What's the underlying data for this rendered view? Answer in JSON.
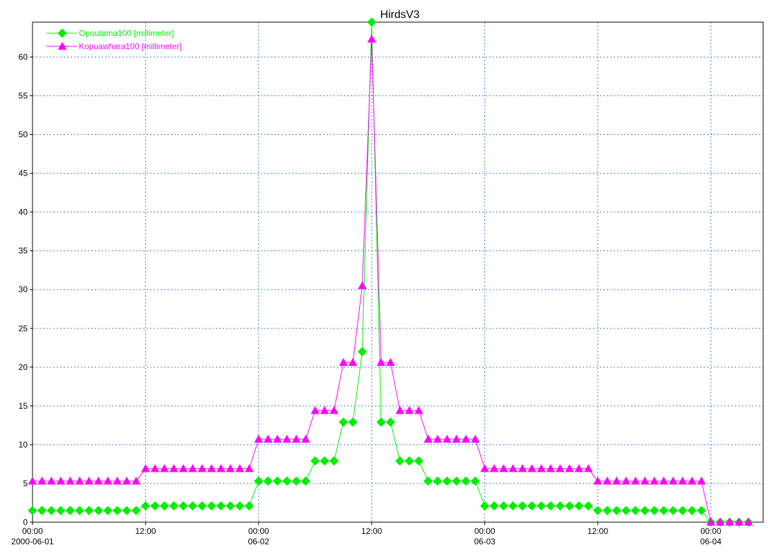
{
  "chart_data": {
    "type": "line",
    "title": "HirdsV3",
    "xlabel": "",
    "ylabel": "",
    "x_start": "2000-06-01 00:00",
    "x_step_hours": 1,
    "x_ticks": [
      {
        "time": "00:00",
        "date": "2000-06-01"
      },
      {
        "time": "12:00",
        "date": ""
      },
      {
        "time": "00:00",
        "date": "06-02"
      },
      {
        "time": "12:00",
        "date": ""
      },
      {
        "time": "00:00",
        "date": "06-03"
      },
      {
        "time": "12:00",
        "date": ""
      },
      {
        "time": "00:00",
        "date": "06-04"
      }
    ],
    "y_ticks": [
      0,
      5,
      10,
      15,
      20,
      25,
      30,
      35,
      40,
      45,
      50,
      55,
      60
    ],
    "ylim": [
      0,
      64.5
    ],
    "grid": true,
    "legend_position": "top-left",
    "series": [
      {
        "name": "Opoutama100 [millimeter]",
        "color": "#00ee00",
        "marker": "diamond",
        "values": [
          1.5,
          1.5,
          1.5,
          1.5,
          1.5,
          1.5,
          1.5,
          1.5,
          1.5,
          1.5,
          1.5,
          1.5,
          2.1,
          2.1,
          2.1,
          2.1,
          2.1,
          2.1,
          2.1,
          2.1,
          2.1,
          2.1,
          2.1,
          2.1,
          5.3,
          5.3,
          5.3,
          5.3,
          5.3,
          5.3,
          7.9,
          7.9,
          7.9,
          12.9,
          12.9,
          22,
          64.5,
          12.9,
          12.9,
          7.9,
          7.9,
          7.9,
          5.3,
          5.3,
          5.3,
          5.3,
          5.3,
          5.3,
          2.1,
          2.1,
          2.1,
          2.1,
          2.1,
          2.1,
          2.1,
          2.1,
          2.1,
          2.1,
          2.1,
          2.1,
          1.5,
          1.5,
          1.5,
          1.5,
          1.5,
          1.5,
          1.5,
          1.5,
          1.5,
          1.5,
          1.5,
          1.5,
          0,
          0,
          0,
          0,
          0
        ]
      },
      {
        "name": "Kopuawhara100 [millimeter]",
        "color": "#ff00ff",
        "marker": "triangle",
        "values": [
          5.3,
          5.3,
          5.3,
          5.3,
          5.3,
          5.3,
          5.3,
          5.3,
          5.3,
          5.3,
          5.3,
          5.3,
          6.9,
          6.9,
          6.9,
          6.9,
          6.9,
          6.9,
          6.9,
          6.9,
          6.9,
          6.9,
          6.9,
          6.9,
          10.7,
          10.7,
          10.7,
          10.7,
          10.7,
          10.7,
          14.4,
          14.4,
          14.4,
          20.6,
          20.6,
          30.5,
          62.3,
          20.6,
          20.6,
          14.4,
          14.4,
          14.4,
          10.7,
          10.7,
          10.7,
          10.7,
          10.7,
          10.7,
          6.9,
          6.9,
          6.9,
          6.9,
          6.9,
          6.9,
          6.9,
          6.9,
          6.9,
          6.9,
          6.9,
          6.9,
          5.3,
          5.3,
          5.3,
          5.3,
          5.3,
          5.3,
          5.3,
          5.3,
          5.3,
          5.3,
          5.3,
          5.3,
          0,
          0,
          0,
          0,
          0
        ]
      }
    ]
  }
}
